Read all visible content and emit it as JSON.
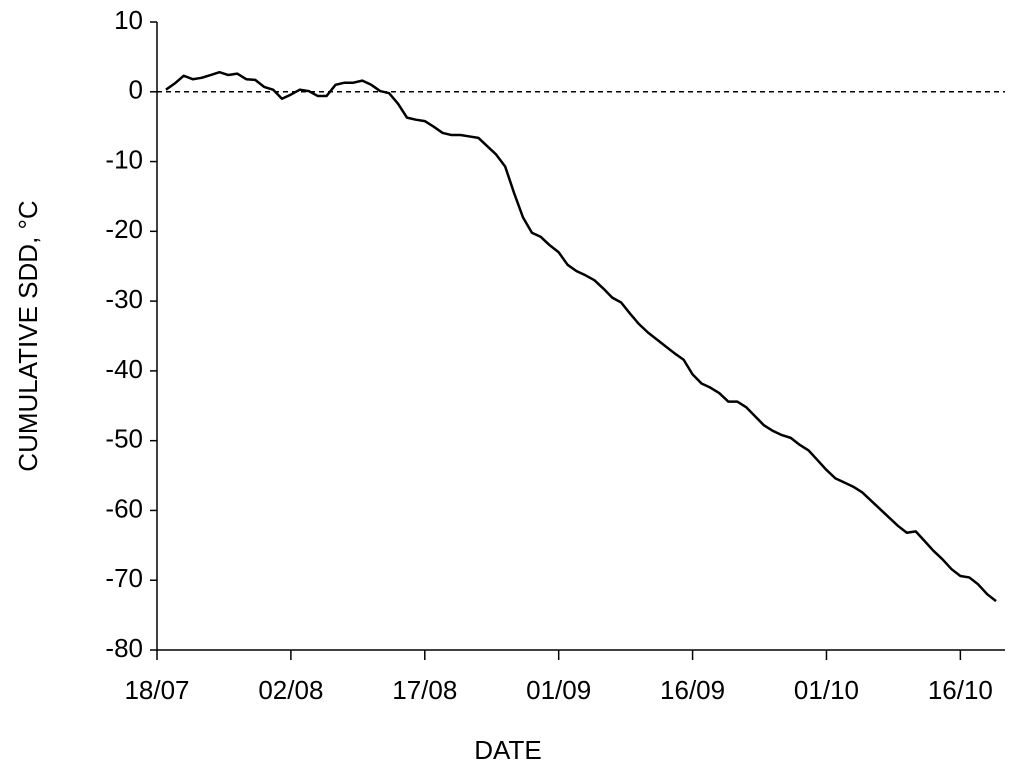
{
  "chart_data": {
    "type": "line",
    "xlabel": "DATE",
    "ylabel": "CUMULATIVE SDD, °C",
    "x": [
      "19/07",
      "20/07",
      "21/07",
      "22/07",
      "23/07",
      "24/07",
      "25/07",
      "26/07",
      "27/07",
      "28/07",
      "29/07",
      "30/07",
      "31/07",
      "01/08",
      "02/08",
      "03/08",
      "04/08",
      "05/08",
      "06/08",
      "07/08",
      "08/08",
      "09/08",
      "10/08",
      "11/08",
      "12/08",
      "13/08",
      "14/08",
      "15/08",
      "16/08",
      "17/08",
      "18/08",
      "19/08",
      "20/08",
      "21/08",
      "22/08",
      "23/08",
      "24/08",
      "25/08",
      "26/08",
      "27/08",
      "28/08",
      "29/08",
      "30/08",
      "31/08",
      "01/09",
      "02/09",
      "03/09",
      "04/09",
      "05/09",
      "06/09",
      "07/09",
      "08/09",
      "09/09",
      "10/09",
      "11/09",
      "12/09",
      "13/09",
      "14/09",
      "15/09",
      "16/09",
      "17/09",
      "18/09",
      "19/09",
      "20/09",
      "21/09",
      "22/09",
      "23/09",
      "24/09",
      "25/09",
      "26/09",
      "27/09",
      "28/09",
      "29/09",
      "30/09",
      "01/10",
      "02/10",
      "03/10",
      "04/10",
      "05/10",
      "06/10",
      "07/10",
      "08/10",
      "09/10",
      "10/10",
      "11/10",
      "12/10",
      "13/10",
      "14/10",
      "15/10",
      "16/10",
      "17/10",
      "18/10",
      "19/10",
      "20/10"
    ],
    "values": [
      0.3,
      1.2,
      2.3,
      1.8,
      2.0,
      2.4,
      2.8,
      2.4,
      2.6,
      1.8,
      1.7,
      0.7,
      0.3,
      -1.0,
      -0.4,
      0.3,
      0.1,
      -0.6,
      -0.6,
      1.0,
      1.3,
      1.3,
      1.6,
      1.0,
      0.1,
      -0.2,
      -1.7,
      -3.7,
      -4.0,
      -4.2,
      -5.0,
      -5.9,
      -6.2,
      -6.2,
      -6.4,
      -6.6,
      -7.8,
      -9.0,
      -10.7,
      -14.5,
      -18.0,
      -20.2,
      -20.8,
      -22.0,
      -23.0,
      -24.8,
      -25.7,
      -26.3,
      -27.0,
      -28.2,
      -29.5,
      -30.2,
      -31.8,
      -33.3,
      -34.5,
      -35.5,
      -36.5,
      -37.5,
      -38.4,
      -40.5,
      -41.8,
      -42.4,
      -43.2,
      -44.4,
      -44.4,
      -45.2,
      -46.5,
      -47.8,
      -48.6,
      -49.2,
      -49.6,
      -50.6,
      -51.4,
      -52.8,
      -54.2,
      -55.4,
      -56.0,
      -56.6,
      -57.4,
      -58.6,
      -59.8,
      -61.0,
      -62.2,
      -63.2,
      -63.0,
      -64.4,
      -65.8,
      -67.0,
      -68.4,
      -69.4,
      -69.6,
      -70.6,
      -72.0,
      -73.0
    ],
    "color": "#000000",
    "xlim": [
      "18/07",
      "21/10"
    ],
    "xticks": [
      "18/07",
      "02/08",
      "17/08",
      "01/09",
      "16/09",
      "01/10",
      "16/10"
    ],
    "ylim": [
      -80,
      10
    ],
    "yticks": [
      -80,
      -70,
      -60,
      -50,
      -40,
      -30,
      -20,
      -10,
      0,
      10
    ],
    "hline": 0
  }
}
